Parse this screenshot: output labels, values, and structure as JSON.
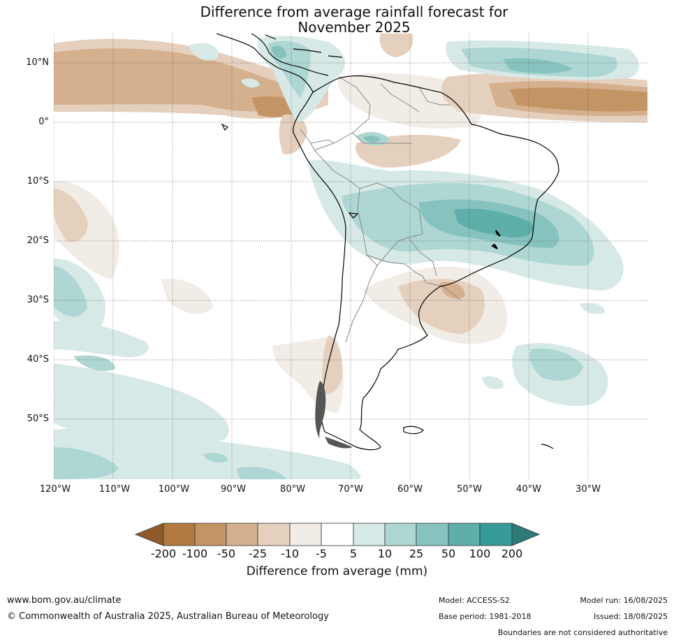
{
  "title": {
    "line1": "Difference from average rainfall forecast for",
    "line2": "November 2025"
  },
  "map": {
    "latitude_labels": [
      "10°N",
      "0°",
      "10°S",
      "20°S",
      "30°S",
      "40°S",
      "50°S"
    ],
    "longitude_labels": [
      "120°W",
      "110°W",
      "100°W",
      "90°W",
      "80°W",
      "70°W",
      "60°W",
      "50°W",
      "40°W",
      "30°W"
    ],
    "gridlines": "dotted",
    "coastline_color": "#000000",
    "borders_color": "#888888"
  },
  "colorbar": {
    "tick_labels": [
      "-200",
      "-100",
      "-50",
      "-25",
      "-10",
      "-5",
      "5",
      "10",
      "25",
      "50",
      "100",
      "200"
    ],
    "colors": {
      "below_-200": "#8f5a2c",
      "-200_-100": "#b07a40",
      "-100_-50": "#c39464",
      "-50_-25": "#d4b08e",
      "-25_-10": "#e5cfbd",
      "-10_-5": "#f1ece6",
      "-5_5": "#ffffff",
      "5_10": "#d6e9e7",
      "10_25": "#aed6d3",
      "25_50": "#86c3bf",
      "50_100": "#5eaeaa",
      "100_200": "#369a96",
      "above_200": "#2d7b79"
    },
    "axis_title": "Difference from average (mm)"
  },
  "footer": {
    "url": "www.bom.gov.au/climate",
    "copyright": "© Commonwealth of Australia 2025, Australian Bureau of Meteorology",
    "model": "Model: ACCESS-S2",
    "base_period": "Base period: 1981-2018",
    "model_run": "Model run: 16/08/2025",
    "issued": "Issued: 18/08/2025",
    "boundaries_note": "Boundaries are not considered authoritative"
  }
}
